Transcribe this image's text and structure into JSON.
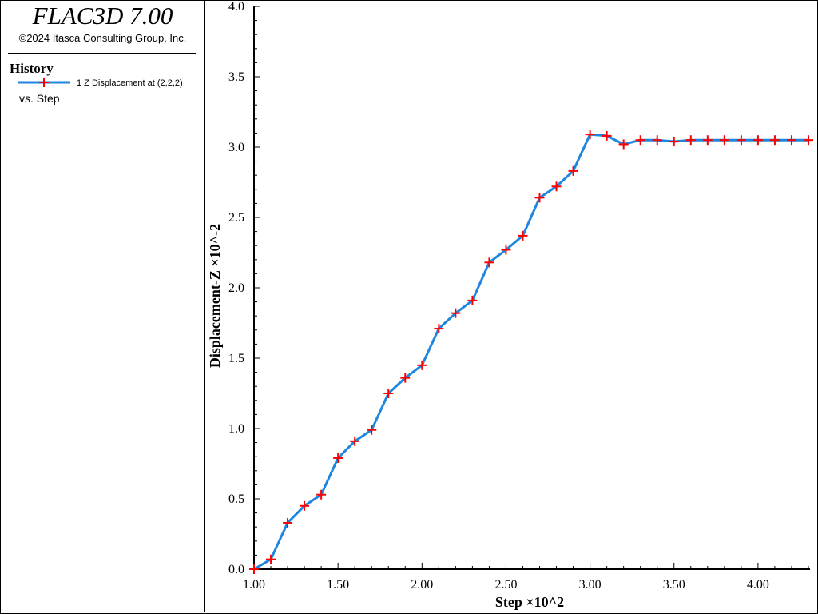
{
  "header": {
    "app_title": "FLAC3D 7.00",
    "copyright": "©2024 Itasca Consulting Group, Inc."
  },
  "legend": {
    "section_title": "History",
    "entry_label": "1 Z Displacement at (2,2,2)",
    "vs_label": "vs. Step"
  },
  "colors": {
    "line": "#1f86e0",
    "marker": "#ff0000",
    "axis": "#000000"
  },
  "chart_data": {
    "type": "line",
    "xlabel": "Step ×10^2",
    "ylabel": "Displacement-Z ×10^-2",
    "xlim": [
      1.0,
      4.3
    ],
    "ylim": [
      0.0,
      4.0
    ],
    "x_ticks": [
      1.0,
      1.5,
      2.0,
      2.5,
      3.0,
      3.5,
      4.0
    ],
    "x_tick_labels": [
      "1.00",
      "1.50",
      "2.00",
      "2.50",
      "3.00",
      "3.50",
      "4.00"
    ],
    "y_ticks": [
      0.0,
      0.5,
      1.0,
      1.5,
      2.0,
      2.5,
      3.0,
      3.5,
      4.0
    ],
    "y_tick_labels": [
      "0.0",
      "0.5",
      "1.0",
      "1.5",
      "2.0",
      "2.5",
      "3.0",
      "3.5",
      "4.0"
    ],
    "grid": false,
    "legend_position": "left-panel",
    "series": [
      {
        "name": "1 Z Displacement at (2,2,2)",
        "marker": "plus",
        "x": [
          1.0,
          1.1,
          1.2,
          1.3,
          1.4,
          1.5,
          1.6,
          1.7,
          1.8,
          1.9,
          2.0,
          2.1,
          2.2,
          2.3,
          2.4,
          2.5,
          2.6,
          2.7,
          2.8,
          2.9,
          3.0,
          3.1,
          3.2,
          3.3,
          3.4,
          3.5,
          3.6,
          3.7,
          3.8,
          3.9,
          4.0,
          4.1,
          4.2,
          4.3
        ],
        "y": [
          0.0,
          0.07,
          0.33,
          0.45,
          0.53,
          0.79,
          0.91,
          0.99,
          1.25,
          1.36,
          1.45,
          1.71,
          1.82,
          1.91,
          2.18,
          2.27,
          2.37,
          2.64,
          2.72,
          2.83,
          3.09,
          3.08,
          3.02,
          3.05,
          3.05,
          3.04,
          3.05,
          3.05,
          3.05,
          3.05,
          3.05,
          3.05,
          3.05,
          3.05
        ]
      }
    ]
  }
}
